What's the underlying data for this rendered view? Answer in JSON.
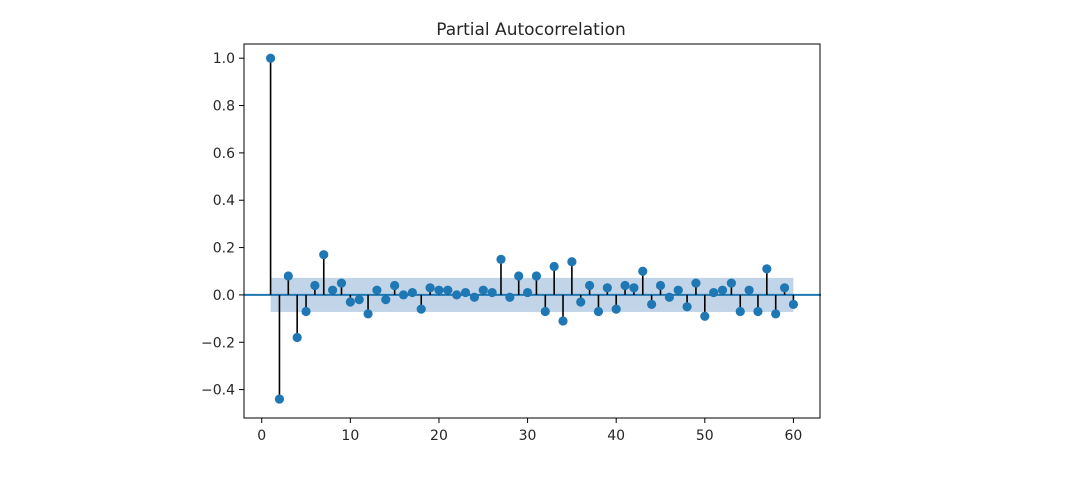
{
  "chart_data": {
    "type": "stem",
    "title": "Partial Autocorrelation",
    "xlabel": "",
    "ylabel": "",
    "xlim": [
      -2,
      63
    ],
    "ylim": [
      -0.52,
      1.06
    ],
    "x_ticks": [
      0,
      10,
      20,
      30,
      40,
      50,
      60
    ],
    "x_tick_labels": [
      "0",
      "10",
      "20",
      "30",
      "40",
      "50",
      "60"
    ],
    "y_ticks": [
      -0.4,
      -0.2,
      0.0,
      0.2,
      0.4,
      0.6,
      0.8,
      1.0
    ],
    "y_tick_labels": [
      "−0.4",
      "−0.2",
      "0.0",
      "0.2",
      "0.4",
      "0.6",
      "0.8",
      "1.0"
    ],
    "grid": false,
    "confidence_band": {
      "lower": -0.072,
      "upper": 0.072,
      "x_start": 1,
      "x_end": 60,
      "color": "#aec7e0"
    },
    "zero_line_color": "#1f77b4",
    "stem_color": "#000000",
    "marker_color": "#1f77b4",
    "x": [
      1,
      2,
      3,
      4,
      5,
      6,
      7,
      8,
      9,
      10,
      11,
      12,
      13,
      14,
      15,
      16,
      17,
      18,
      19,
      20,
      21,
      22,
      23,
      24,
      25,
      26,
      27,
      28,
      29,
      30,
      31,
      32,
      33,
      34,
      35,
      36,
      37,
      38,
      39,
      40,
      41,
      42,
      43,
      44,
      45,
      46,
      47,
      48,
      49,
      50,
      51,
      52,
      53,
      54,
      55,
      56,
      57,
      58,
      59,
      60
    ],
    "values": [
      1.0,
      -0.44,
      0.08,
      -0.18,
      -0.07,
      0.04,
      0.17,
      0.02,
      0.05,
      -0.03,
      -0.02,
      -0.08,
      0.02,
      -0.02,
      0.04,
      0.0,
      0.01,
      -0.06,
      0.03,
      0.02,
      0.02,
      0.0,
      0.01,
      -0.01,
      0.02,
      0.01,
      0.15,
      -0.01,
      0.08,
      0.01,
      0.08,
      -0.07,
      0.12,
      -0.11,
      0.14,
      -0.03,
      0.04,
      -0.07,
      0.03,
      -0.06,
      0.04,
      0.03,
      0.1,
      -0.04,
      0.04,
      -0.01,
      0.02,
      -0.05,
      0.05,
      -0.09,
      0.01,
      0.02,
      0.05,
      -0.07,
      0.02,
      -0.07,
      0.11,
      -0.08,
      0.03,
      -0.04
    ]
  }
}
